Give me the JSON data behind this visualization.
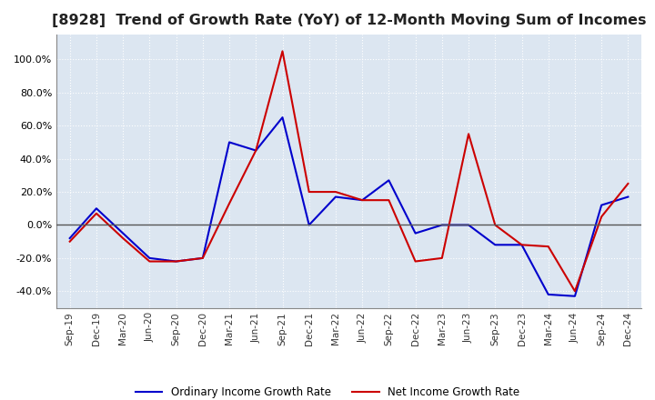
{
  "title": "[8928]  Trend of Growth Rate (YoY) of 12-Month Moving Sum of Incomes",
  "title_fontsize": 11.5,
  "x_labels": [
    "Sep-19",
    "Dec-19",
    "Mar-20",
    "Jun-20",
    "Sep-20",
    "Dec-20",
    "Mar-21",
    "Jun-21",
    "Sep-21",
    "Dec-21",
    "Mar-22",
    "Jun-22",
    "Sep-22",
    "Dec-22",
    "Mar-23",
    "Jun-23",
    "Sep-23",
    "Dec-23",
    "Mar-24",
    "Jun-24",
    "Sep-24",
    "Dec-24"
  ],
  "ordinary_income": [
    -8,
    10,
    -5,
    -20,
    -22,
    -20,
    50,
    45,
    65,
    0,
    17,
    15,
    27,
    -5,
    0,
    0,
    -12,
    -12,
    -42,
    -43,
    12,
    17
  ],
  "net_income": [
    -10,
    7,
    -8,
    -22,
    -22,
    -20,
    13,
    45,
    105,
    20,
    20,
    15,
    15,
    -22,
    -20,
    55,
    0,
    -12,
    -13,
    -40,
    5,
    25
  ],
  "ordinary_color": "#0000cc",
  "net_color": "#cc0000",
  "ylim": [
    -50,
    115
  ],
  "yticks": [
    -40,
    -20,
    0,
    20,
    40,
    60,
    80,
    100
  ],
  "background_color": "#dce6f1",
  "plot_bg_color": "#dce6f1",
  "grid_color": "#ffffff",
  "legend_labels": [
    "Ordinary Income Growth Rate",
    "Net Income Growth Rate"
  ]
}
